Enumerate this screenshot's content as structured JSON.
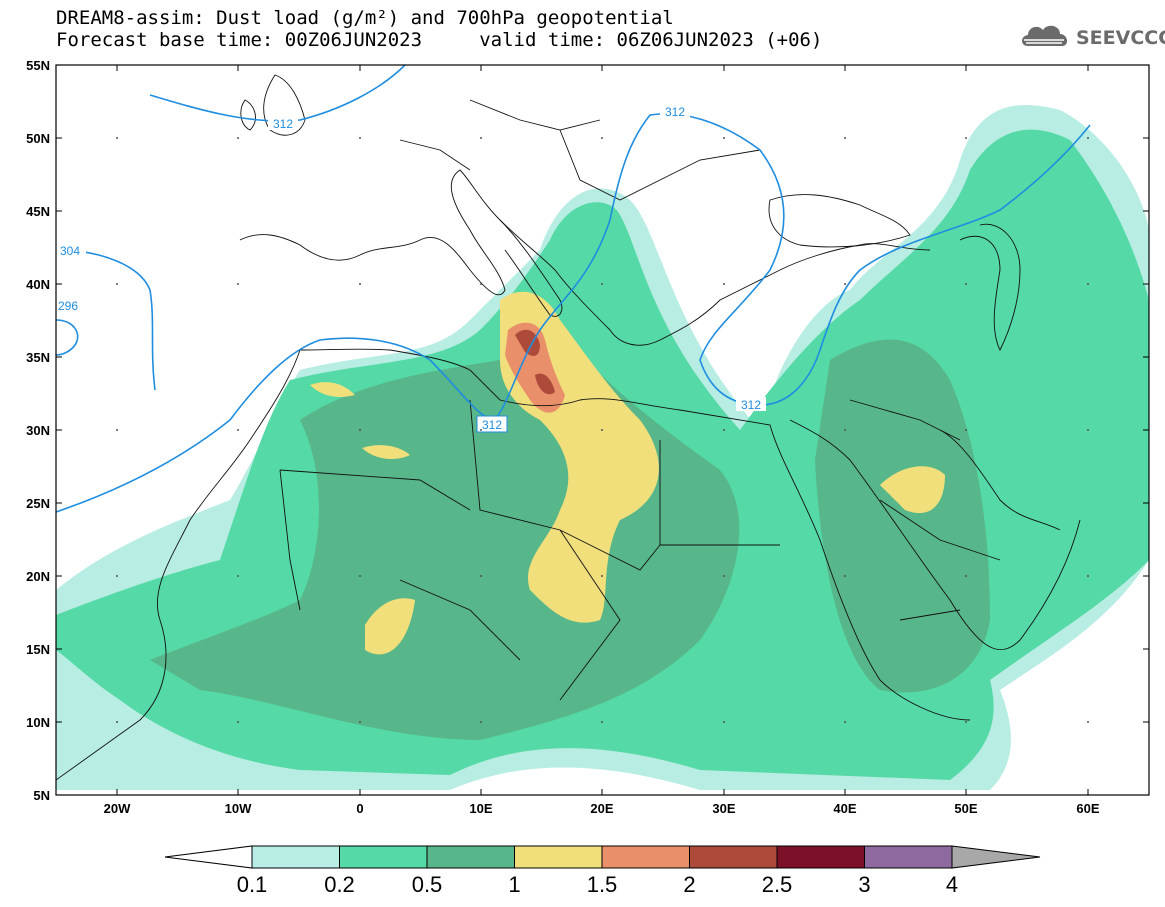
{
  "header": {
    "title_line1": "DREAM8-assim: Dust load (g/m²) and 700hPa geopotential",
    "title_line2": "Forecast base time: 00Z06JUN2023     valid time: 06Z06JUN2023 (+06)",
    "logo_text": "SEEVCCC"
  },
  "map": {
    "lat_labels": [
      "55N",
      "50N",
      "45N",
      "40N",
      "35N",
      "30N",
      "25N",
      "20N",
      "15N",
      "10N",
      "5N"
    ],
    "lon_labels": [
      "20W",
      "10W",
      "0",
      "10E",
      "20E",
      "30E",
      "40E",
      "50E",
      "60E"
    ],
    "contour_labels": [
      "312",
      "312",
      "304",
      "296",
      "312",
      "312"
    ],
    "colors": {
      "c01": "#b7ede2",
      "c02": "#55d9a6",
      "c05": "#57b68a",
      "c1": "#f0df7b",
      "c15": "#e9906a",
      "c2": "#ad4a3a",
      "c25": "#7c1028",
      "c3": "#8e6aa0",
      "c4": "#a8a8a8",
      "contour": "#1f8de0"
    }
  },
  "colorbar": {
    "labels": [
      "0.1",
      "0.2",
      "0.5",
      "1",
      "1.5",
      "2",
      "2.5",
      "3",
      "4"
    ],
    "colors": [
      "#b7ede2",
      "#55d9a6",
      "#57b68a",
      "#f0df7b",
      "#e9906a",
      "#ad4a3a",
      "#7c1028",
      "#8e6aa0"
    ]
  }
}
